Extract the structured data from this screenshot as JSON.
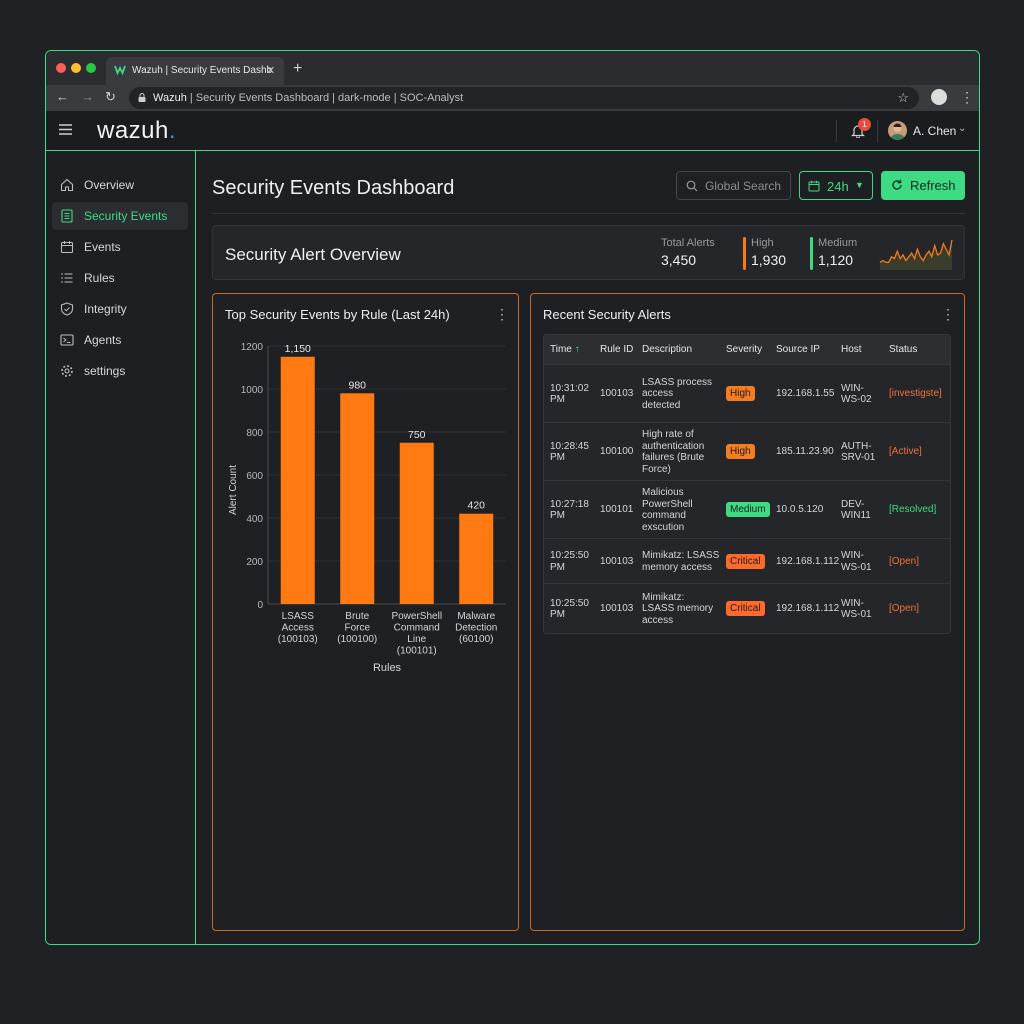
{
  "browser": {
    "tab_title": "Wazuh | Security Events Dashb",
    "tab_close": "✕",
    "new_tab": "+",
    "url_host": "Wazuh",
    "url_rest": " | Security Events Dashboard | dark-mode | SOC-Analyst"
  },
  "app": {
    "logo_text": "wazuh",
    "logo_dot": ".",
    "notification_count": "1",
    "user_name": "A. Chen"
  },
  "sidebar": {
    "items": [
      {
        "label": "Overview",
        "icon": "home-icon"
      },
      {
        "label": "Security Events",
        "icon": "document-icon"
      },
      {
        "label": "Events",
        "icon": "calendar-icon"
      },
      {
        "label": "Rules",
        "icon": "list-icon"
      },
      {
        "label": "Integrity",
        "icon": "shield-icon"
      },
      {
        "label": "Agents",
        "icon": "terminal-icon"
      },
      {
        "label": "settings",
        "icon": "gear-icon"
      }
    ],
    "active_index": 1
  },
  "header": {
    "page_title": "Security Events Dashboard",
    "search_placeholder": "Global Search",
    "time_range": "24h",
    "refresh_label": "Refresh"
  },
  "overview": {
    "title": "Security Alert Overview",
    "stats": [
      {
        "label": "Total Alerts",
        "value": "3,450"
      },
      {
        "label": "High",
        "value": "1,930",
        "color": "#f57c1f"
      },
      {
        "label": "Medium",
        "value": "1,120",
        "color": "#3ddc84"
      }
    ],
    "sparkline": [
      6,
      7,
      6,
      6,
      9,
      8,
      12,
      8,
      10,
      7,
      9,
      11,
      8,
      13,
      9,
      7,
      10,
      12,
      9,
      15,
      10,
      11,
      16,
      13,
      10,
      18
    ]
  },
  "chart_panel": {
    "title": "Top Security Events by Rule (Last 24h)",
    "menu": "⋮"
  },
  "chart_data": {
    "type": "bar",
    "categories": [
      [
        "LSASS",
        "Access",
        "(100103)"
      ],
      [
        "Brute",
        "Force",
        "(100100)"
      ],
      [
        "PowerShell",
        "Command",
        "Line",
        "(100101)"
      ],
      [
        "Malware",
        "Detection",
        "(60100)"
      ]
    ],
    "values": [
      1150,
      980,
      750,
      420
    ],
    "value_labels": [
      "1,150",
      "980",
      "750",
      "420"
    ],
    "xlabel": "Rules",
    "ylabel": "Alert Count",
    "ylim": [
      0,
      1200
    ],
    "yticks": [
      0,
      200,
      400,
      600,
      800,
      1000,
      1200
    ],
    "grid": true,
    "bar_color": "#ff7a12"
  },
  "alerts_panel": {
    "title": "Recent Security Alerts",
    "menu": "⋮",
    "columns": [
      "Time",
      "Rule ID",
      "Description",
      "Severity",
      "Source IP",
      "Host",
      "Status"
    ],
    "sort_indicator": "↑",
    "rows": [
      {
        "time": [
          "10:31:02",
          "PM"
        ],
        "rule_id": "100103",
        "description": [
          "LSASS process",
          "access",
          "detected"
        ],
        "severity": "High",
        "source_ip": "192.168.1.55",
        "host": [
          "WIN-",
          "WS-02"
        ],
        "status": "[investigste]"
      },
      {
        "time": [
          "10:28:45",
          "PM"
        ],
        "rule_id": "100100",
        "description": [
          "High rate of",
          "authentication",
          "failures (Brute",
          "Force)"
        ],
        "severity": "High",
        "source_ip": "185.11.23.90",
        "host": [
          "AUTH-",
          "SRV-01"
        ],
        "status": "[Active]"
      },
      {
        "time": [
          "10:27:18",
          "PM"
        ],
        "rule_id": "100101",
        "description": [
          "Malicious",
          "PowerShell",
          "command",
          "exscution"
        ],
        "severity": "Medium",
        "source_ip": "10.0.5.120",
        "host": [
          "DEV-",
          "WIN11"
        ],
        "status": "[Resolved]"
      },
      {
        "time": [
          "10:25:50",
          "PM"
        ],
        "rule_id": "100103",
        "description": [
          "Mimikatz: LSASS",
          "memory access"
        ],
        "severity": "Critical",
        "source_ip": "192.168.1.112",
        "host": [
          "WIN-",
          "WS-01"
        ],
        "status": "[Open]"
      },
      {
        "time": [
          "10:25:50",
          "PM"
        ],
        "rule_id": "100103",
        "description": [
          "Mimikatz:",
          "LSASS memory",
          "access"
        ],
        "severity": "Critical",
        "source_ip": "192.168.1.112",
        "host": [
          "WIN-",
          "WS-01"
        ],
        "status": "[Open]"
      }
    ],
    "severity_colors": {
      "High": "#f57c1f",
      "Medium": "#3ddc84",
      "Critical": "#ff6a2b"
    },
    "status_colors": {
      "[investigste]": "#f0703a",
      "[Active]": "#f0703a",
      "[Resolved]": "#3ddc84",
      "[Open]": "#f0703a"
    }
  }
}
